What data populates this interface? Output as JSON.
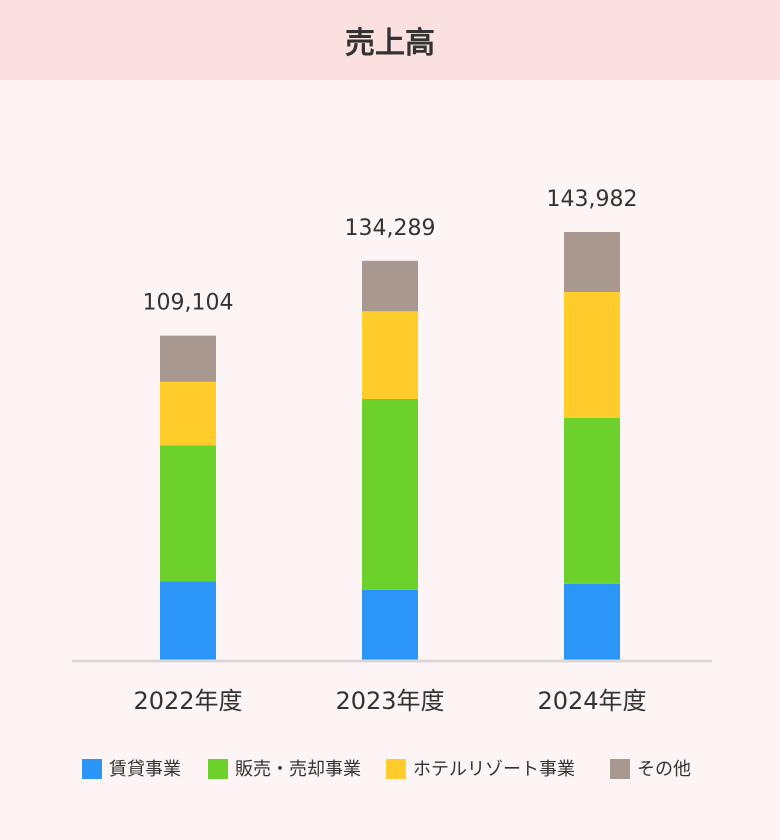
{
  "chart_data": {
    "type": "stacked-bar",
    "title": "売上高",
    "categories": [
      "2022年度",
      "2023年度",
      "2024年度"
    ],
    "series": [
      {
        "name": "賃貸事業",
        "color": "#2b96f7",
        "values": [
          26500,
          23600,
          25600
        ]
      },
      {
        "name": "販売・売却事業",
        "color": "#6cd12a",
        "values": [
          45700,
          64200,
          55800
        ]
      },
      {
        "name": "ホテルリゾート事業",
        "color": "#ffcc2c",
        "values": [
          21400,
          29500,
          42400
        ]
      },
      {
        "name": "その他",
        "color": "#a89890",
        "values": [
          15504,
          16989,
          20182
        ]
      }
    ],
    "totals": {
      "values": [
        109104,
        134289,
        143982
      ],
      "value_labels": [
        "109,104",
        "134,289",
        "143,982"
      ]
    }
  }
}
